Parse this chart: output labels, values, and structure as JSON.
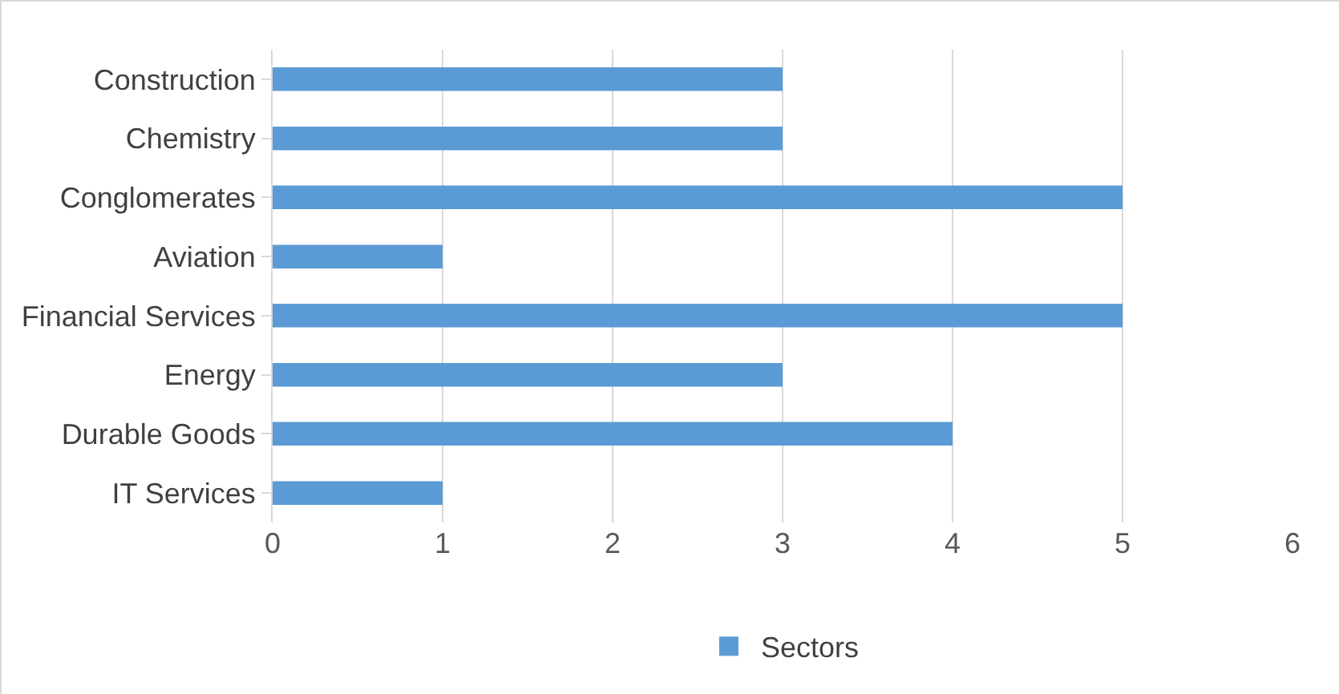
{
  "chart_data": {
    "type": "bar",
    "orientation": "horizontal",
    "categories": [
      "Construction",
      "Chemistry",
      "Conglomerates",
      "Aviation",
      "Financial Services",
      "Energy",
      "Durable Goods",
      "IT Services"
    ],
    "series": [
      {
        "name": "Sectors",
        "color": "#5b9bd5",
        "values": [
          3,
          3,
          5,
          1,
          5,
          3,
          4,
          1
        ]
      }
    ],
    "xlim": [
      0,
      6
    ],
    "xticks": [
      0,
      1,
      2,
      3,
      4,
      5,
      6
    ],
    "grid": "x",
    "legend": "bottom"
  }
}
